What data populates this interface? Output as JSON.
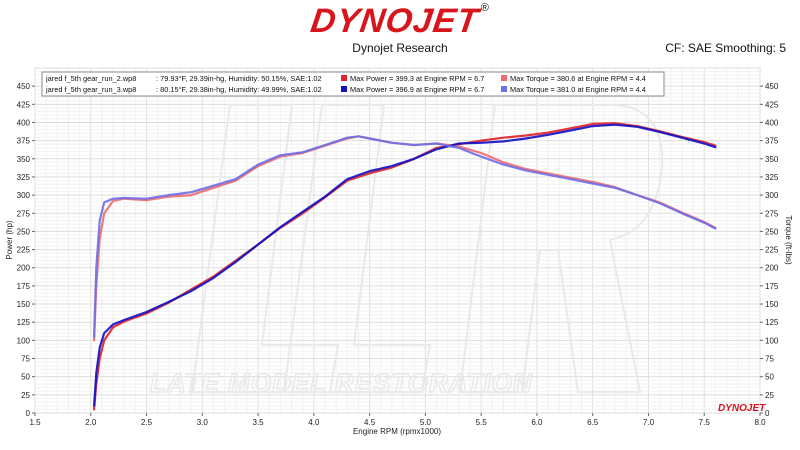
{
  "header": {
    "logo_text": "DYNOJET",
    "logo_mark": "®",
    "subtitle": "Dynojet Research",
    "correction": "CF: SAE Smoothing: 5"
  },
  "watermark": {
    "text": "LATE MODEL RESTORATION",
    "corner_logo": "DYNOJET"
  },
  "legend": {
    "runs": [
      {
        "file": "jared f_5th gear_run_2.wp8",
        "conditions": ": 79.93°F, 29.39in-hg, Humidity: 50.15%, SAE:1.02",
        "power_text": "Max Power = 399.3 at Engine RPM = 6.7",
        "torque_text": "Max Torque = 380.6 at Engine RPM = 4.4",
        "power_color": "#e0252b",
        "torque_color": "#ee6d70"
      },
      {
        "file": "jared f_5th gear_run_3.wp8",
        "conditions": ": 80.15°F, 29.38in-hg, Humidity: 49.99%, SAE:1.02",
        "power_text": "Max Power = 396.9 at Engine RPM = 6.7",
        "torque_text": "Max Torque = 381.0 at Engine RPM = 4.4",
        "power_color": "#1212c8",
        "torque_color": "#6f6fe6"
      }
    ]
  },
  "chart_data": {
    "type": "line",
    "xlabel": "Engine RPM (rpmx1000)",
    "ylabel": "Power (hp)",
    "y2label": "Torque (ft-lbs)",
    "xlim": [
      1.5,
      8.0
    ],
    "ylim": [
      0,
      475
    ],
    "y2lim": [
      0,
      475
    ],
    "x_ticks": [
      "1.5",
      "2.0",
      "2.5",
      "3.0",
      "3.5",
      "4.0",
      "4.5",
      "5.0",
      "5.5",
      "6.0",
      "6.5",
      "7.0",
      "7.5",
      "8.0"
    ],
    "y_ticks": [
      "0",
      "25",
      "50",
      "75",
      "100",
      "125",
      "150",
      "175",
      "200",
      "225",
      "250",
      "275",
      "300",
      "325",
      "350",
      "375",
      "400",
      "425",
      "450"
    ],
    "grid": true,
    "series": [
      {
        "name": "jared f_5th gear_run_2.wp8",
        "quantity": "Power",
        "color": "#e0252b",
        "x": [
          2.03,
          2.05,
          2.08,
          2.12,
          2.2,
          2.3,
          2.5,
          2.7,
          2.9,
          3.1,
          3.3,
          3.5,
          3.7,
          3.9,
          4.1,
          4.3,
          4.5,
          4.7,
          4.9,
          5.1,
          5.3,
          5.5,
          5.7,
          5.9,
          6.1,
          6.3,
          6.5,
          6.7,
          6.9,
          7.1,
          7.3,
          7.5,
          7.6
        ],
        "y": [
          5,
          40,
          75,
          100,
          118,
          126,
          137,
          152,
          170,
          188,
          210,
          232,
          255,
          275,
          297,
          320,
          330,
          338,
          350,
          365,
          370,
          375,
          379,
          382,
          386,
          392,
          398,
          399,
          395,
          388,
          380,
          373,
          368
        ]
      },
      {
        "name": "jared f_5th gear_run_2.wp8",
        "quantity": "Torque",
        "color": "#ee6d70",
        "x": [
          2.03,
          2.05,
          2.08,
          2.12,
          2.2,
          2.3,
          2.5,
          2.7,
          2.9,
          3.1,
          3.3,
          3.5,
          3.7,
          3.9,
          4.1,
          4.3,
          4.4,
          4.5,
          4.7,
          4.9,
          5.1,
          5.3,
          5.5,
          5.7,
          5.9,
          6.1,
          6.3,
          6.5,
          6.7,
          6.9,
          7.1,
          7.3,
          7.5,
          7.6
        ],
        "y": [
          100,
          175,
          240,
          275,
          292,
          295,
          293,
          298,
          300,
          310,
          320,
          340,
          353,
          358,
          368,
          378,
          381,
          378,
          372,
          369,
          371,
          367,
          358,
          345,
          336,
          330,
          324,
          318,
          311,
          300,
          290,
          276,
          263,
          255
        ]
      },
      {
        "name": "jared f_5th gear_run_3.wp8",
        "quantity": "Power",
        "color": "#1212c8",
        "x": [
          2.03,
          2.05,
          2.08,
          2.12,
          2.2,
          2.3,
          2.5,
          2.7,
          2.9,
          3.1,
          3.3,
          3.5,
          3.7,
          3.9,
          4.1,
          4.3,
          4.5,
          4.7,
          4.9,
          5.1,
          5.3,
          5.5,
          5.7,
          5.9,
          6.1,
          6.3,
          6.5,
          6.7,
          6.9,
          7.1,
          7.3,
          7.5,
          7.6
        ],
        "y": [
          10,
          55,
          90,
          110,
          122,
          128,
          139,
          153,
          168,
          186,
          208,
          232,
          256,
          277,
          298,
          322,
          333,
          340,
          350,
          363,
          371,
          372,
          374,
          378,
          383,
          389,
          395,
          397,
          394,
          387,
          379,
          371,
          366
        ]
      },
      {
        "name": "jared f_5th gear_run_3.wp8",
        "quantity": "Torque",
        "color": "#6f6fe6",
        "x": [
          2.03,
          2.05,
          2.08,
          2.12,
          2.2,
          2.3,
          2.5,
          2.7,
          2.9,
          3.1,
          3.3,
          3.5,
          3.7,
          3.9,
          4.1,
          4.3,
          4.4,
          4.5,
          4.7,
          4.9,
          5.1,
          5.3,
          5.5,
          5.7,
          5.9,
          6.1,
          6.3,
          6.5,
          6.7,
          6.9,
          7.1,
          7.3,
          7.5,
          7.6
        ],
        "y": [
          105,
          200,
          265,
          290,
          295,
          296,
          295,
          300,
          304,
          313,
          322,
          342,
          355,
          359,
          369,
          379,
          381,
          378,
          372,
          369,
          371,
          365,
          353,
          342,
          334,
          328,
          322,
          316,
          310,
          300,
          289,
          275,
          262,
          254
        ]
      }
    ]
  }
}
